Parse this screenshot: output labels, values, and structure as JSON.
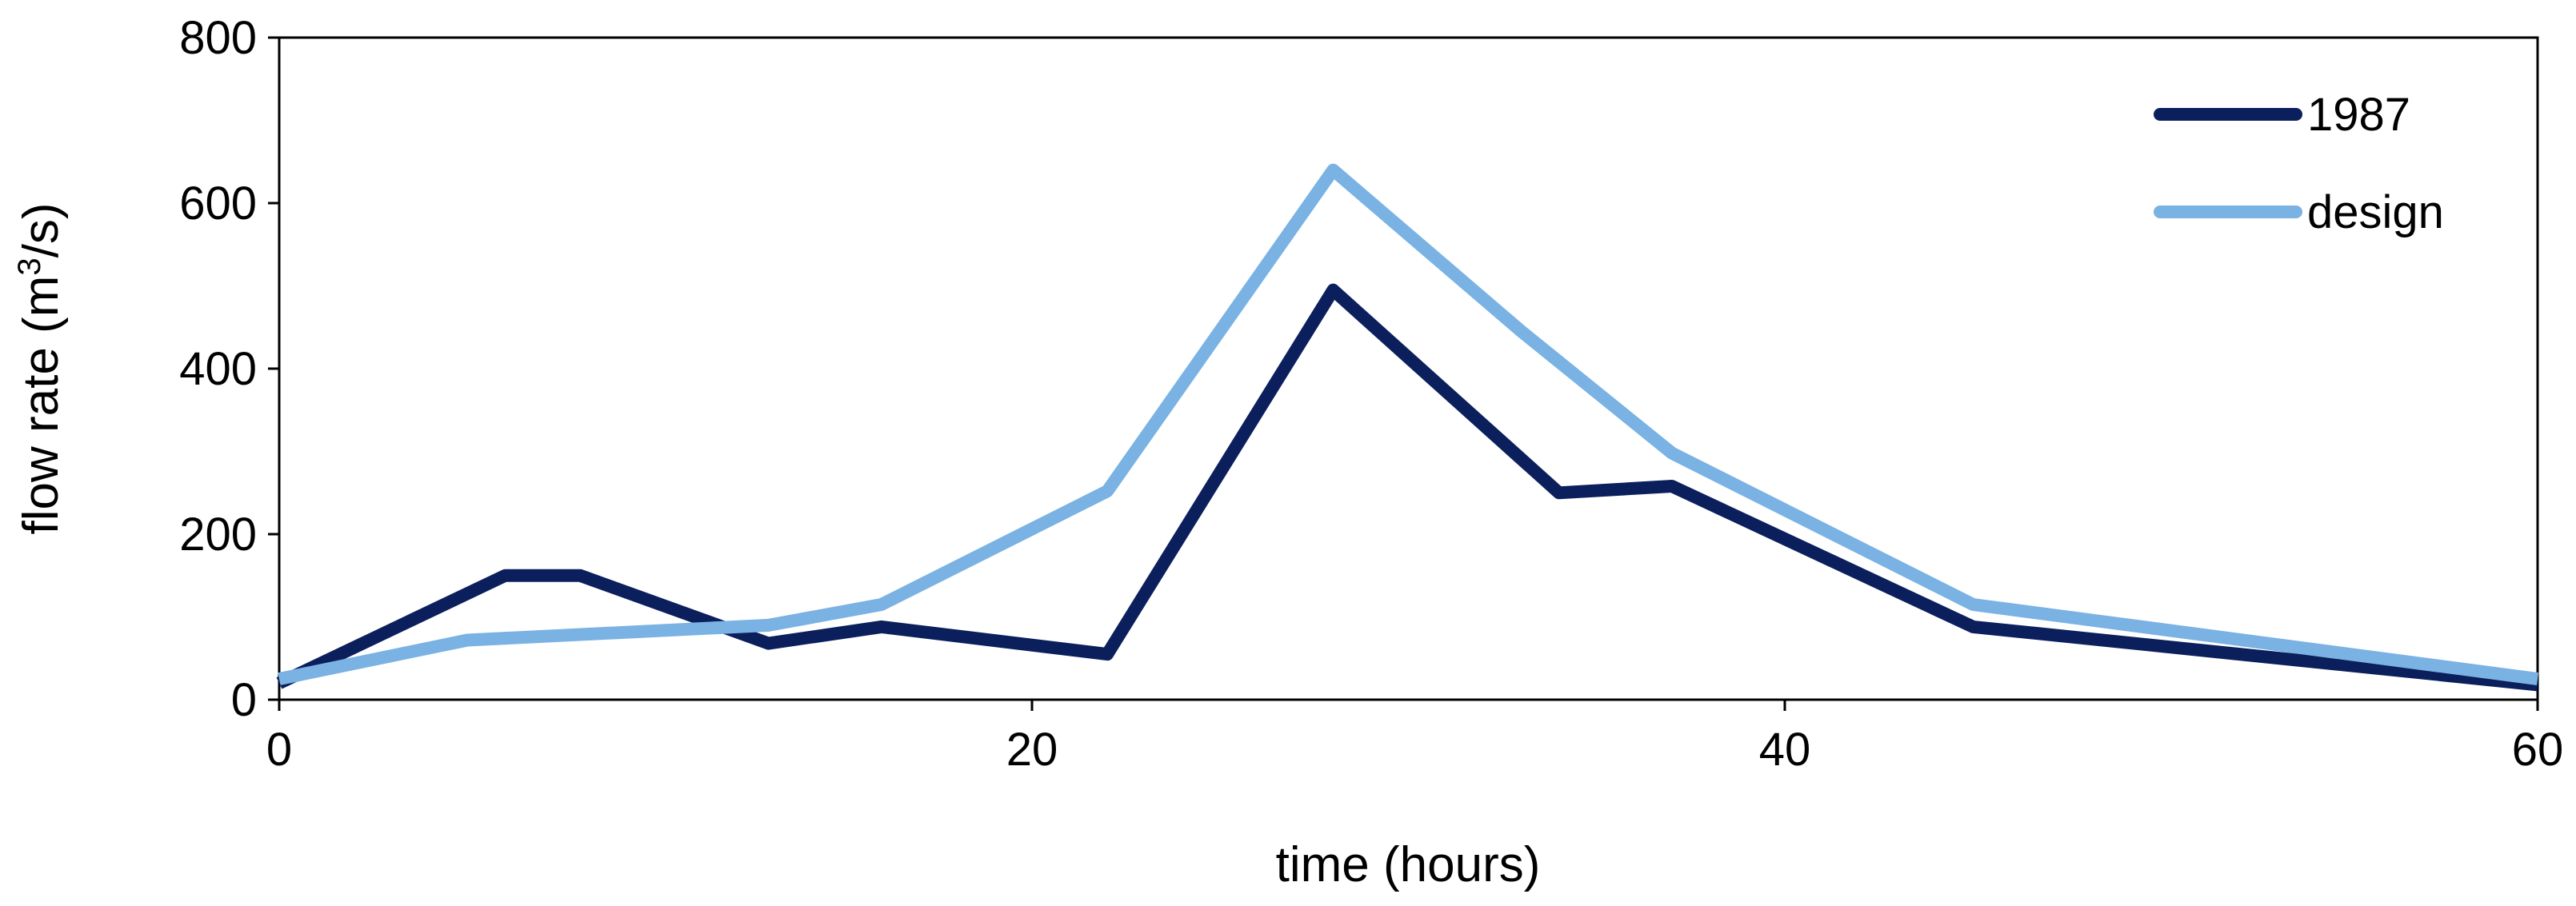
{
  "chart_data": {
    "type": "line",
    "title": "",
    "xlabel": "time (hours)",
    "ylabel": {
      "prefix": "flow rate (m",
      "superscript": "3",
      "suffix": "/s)"
    },
    "xlim": [
      0,
      60
    ],
    "ylim": [
      0,
      800
    ],
    "x_ticks": [
      0,
      20,
      40,
      60
    ],
    "y_ticks": [
      0,
      200,
      400,
      600,
      800
    ],
    "grid": false,
    "legend_position": "top-right",
    "series": [
      {
        "name": "1987",
        "color": "#0b1f5c",
        "points": [
          [
            0,
            20
          ],
          [
            6,
            150
          ],
          [
            8,
            150
          ],
          [
            13,
            68
          ],
          [
            16,
            88
          ],
          [
            22,
            55
          ],
          [
            28,
            495
          ],
          [
            34,
            250
          ],
          [
            37,
            258
          ],
          [
            45,
            88
          ],
          [
            60,
            18
          ]
        ]
      },
      {
        "name": "design",
        "color": "#7ab2e3",
        "points": [
          [
            0,
            25
          ],
          [
            5,
            72
          ],
          [
            13,
            90
          ],
          [
            16,
            115
          ],
          [
            22,
            252
          ],
          [
            28,
            640
          ],
          [
            33,
            445
          ],
          [
            37,
            298
          ],
          [
            45,
            115
          ],
          [
            60,
            25
          ]
        ]
      }
    ]
  }
}
